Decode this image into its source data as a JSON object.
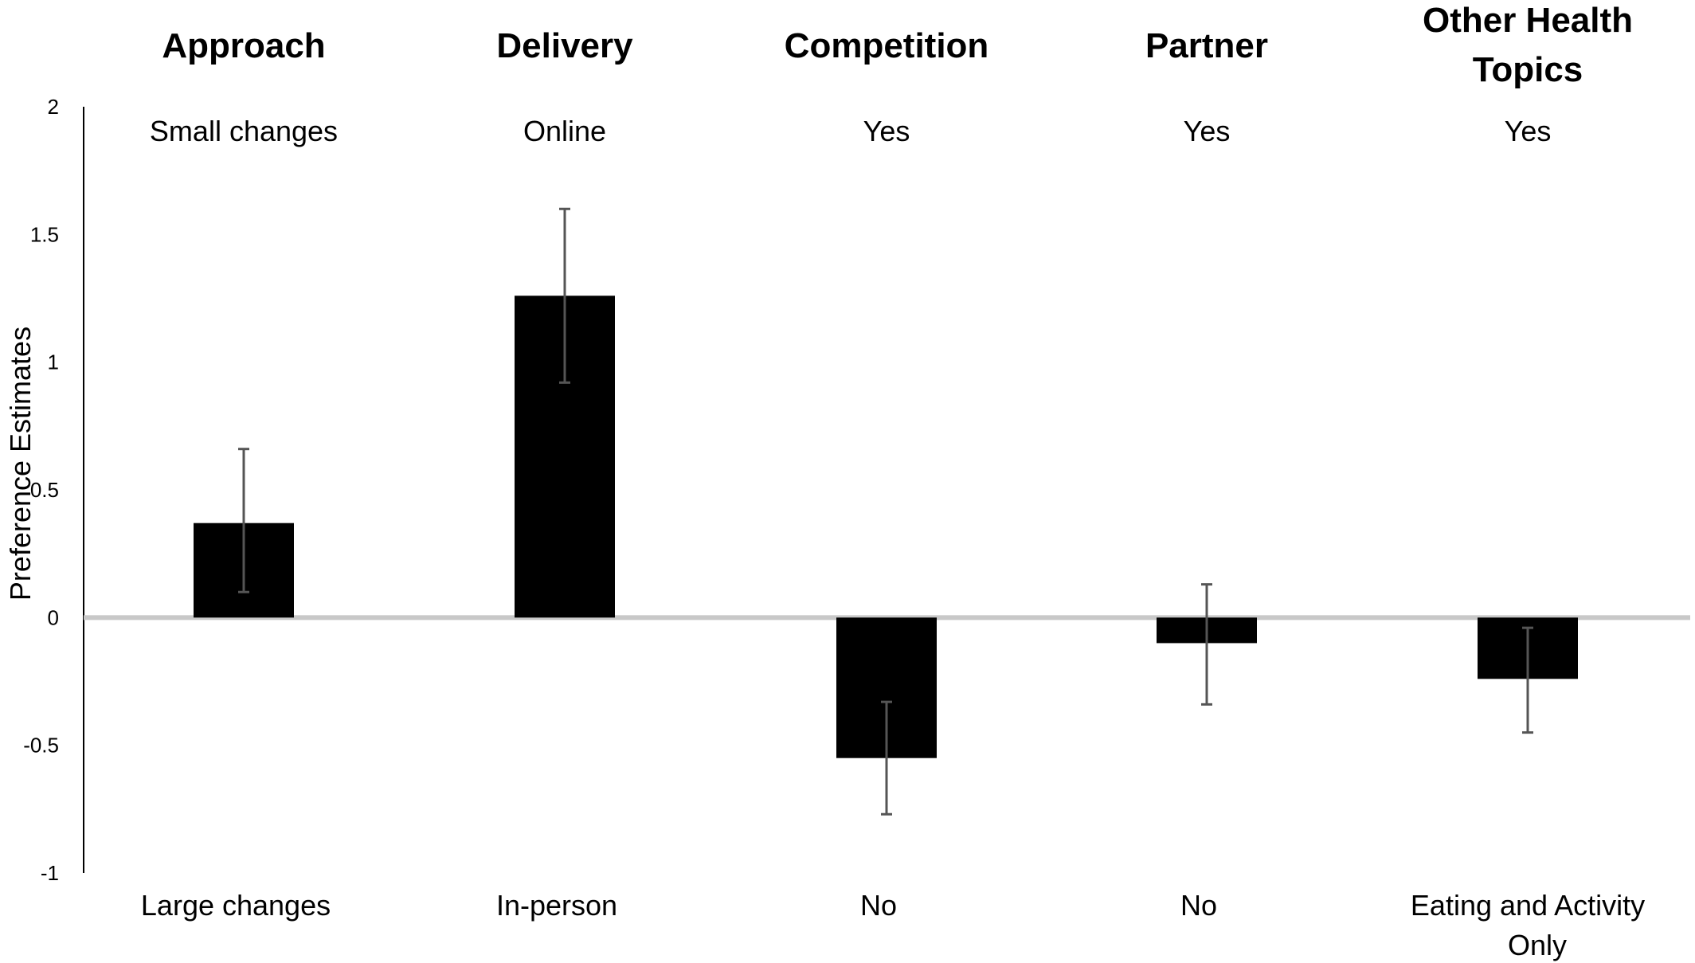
{
  "chart_data": {
    "type": "bar",
    "ylabel": "Preference  Estimates",
    "ylim": [
      -1,
      2
    ],
    "yticks": [
      2,
      1.5,
      1,
      0.5,
      0,
      -0.5,
      -1
    ],
    "ytick_labels": [
      "2",
      "1.5",
      "1",
      "0.5",
      "0",
      "-0.5",
      "-1"
    ],
    "grid": false,
    "legend": "none",
    "bar_color": "#000000",
    "zero_line_color": "#c8c8c8",
    "categories": [
      {
        "title": "Approach",
        "positive_level": "Small changes",
        "negative_level": "Large changes",
        "value": 0.37,
        "error_low": 0.1,
        "error_high": 0.66
      },
      {
        "title": "Delivery",
        "positive_level": "Online",
        "negative_level": "In-person",
        "value": 1.26,
        "error_low": 0.92,
        "error_high": 1.6
      },
      {
        "title": "Competition",
        "positive_level": "Yes",
        "negative_level": "No",
        "value": -0.55,
        "error_low": -0.77,
        "error_high": -0.33
      },
      {
        "title": "Partner",
        "positive_level": "Yes",
        "negative_level": "No",
        "value": -0.1,
        "error_low": -0.34,
        "error_high": 0.13
      },
      {
        "title": "Other Health Topics",
        "positive_level": "Yes",
        "negative_level": "Eating and Activity Only",
        "value": -0.24,
        "error_low": -0.45,
        "error_high": -0.04
      }
    ]
  }
}
